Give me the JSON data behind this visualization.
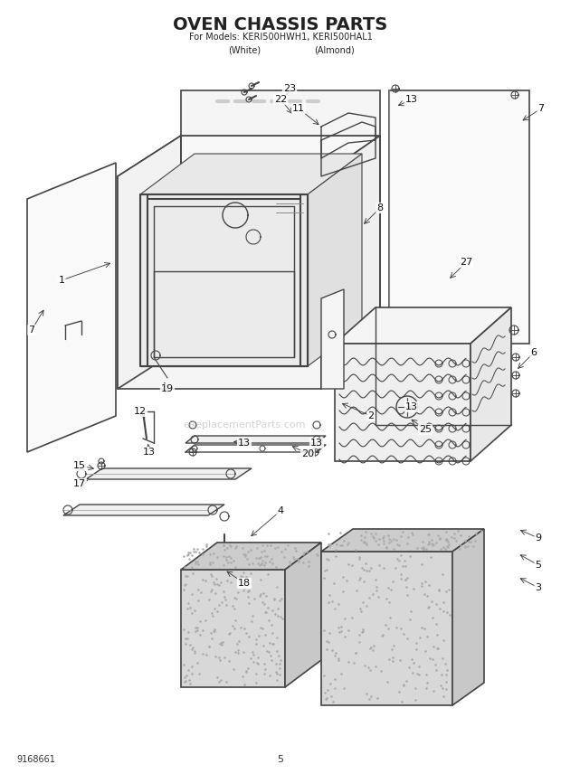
{
  "title": "OVEN CHASSIS PARTS",
  "subtitle1": "For Models: KERI500HWH1, KERI500HAL1",
  "subtitle2_white": "(White)",
  "subtitle2_almond": "(Almond)",
  "page_num": "5",
  "doc_num": "9168661",
  "bg_color": "#ffffff",
  "line_color": "#444444",
  "text_color": "#222222",
  "watermark": "eReplacementParts.com",
  "figsize": [
    6.2,
    8.56
  ],
  "dpi": 100
}
